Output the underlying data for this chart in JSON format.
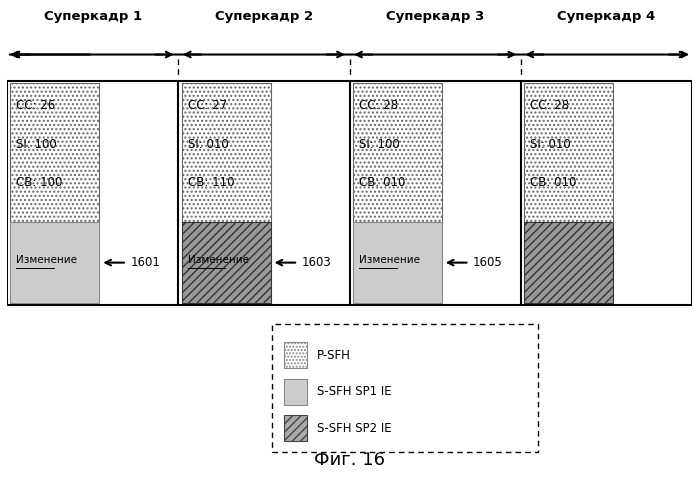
{
  "title": "Фиг. 16",
  "superframes": [
    {
      "label": "Суперкадр 1",
      "cc": "CC: 26",
      "si": "SI: 100",
      "cb": "CB: 100",
      "change_label": "Изменение",
      "arrow_label": "1601",
      "change_type": "sp1"
    },
    {
      "label": "Суперкадр 2",
      "cc": "CC: 27",
      "si": "SI: 010",
      "cb": "CB: 110",
      "change_label": "Изменение",
      "arrow_label": "1603",
      "change_type": "sp2"
    },
    {
      "label": "Суперкадр 3",
      "cc": "CC: 28",
      "si": "SI: 100",
      "cb": "CB: 010",
      "change_label": "Изменение",
      "arrow_label": "1605",
      "change_type": "sp1"
    },
    {
      "label": "Суперкадр 4",
      "cc": "CC: 28",
      "si": "SI: 010",
      "cb": "CB: 010",
      "change_label": "",
      "arrow_label": "",
      "change_type": "sp2_only"
    }
  ],
  "legend_items": [
    {
      "label": "P-SFH",
      "facecolor": "#ffffff",
      "hatch": ".....",
      "edgecolor": "#888888"
    },
    {
      "label": "S-SFH SP1 IE",
      "facecolor": "#cccccc",
      "hatch": "",
      "edgecolor": "#888888"
    },
    {
      "label": "S-SFH SP2 IE",
      "facecolor": "#aaaaaa",
      "hatch": "////",
      "edgecolor": "#444444"
    }
  ],
  "bg_color": "#ffffff"
}
